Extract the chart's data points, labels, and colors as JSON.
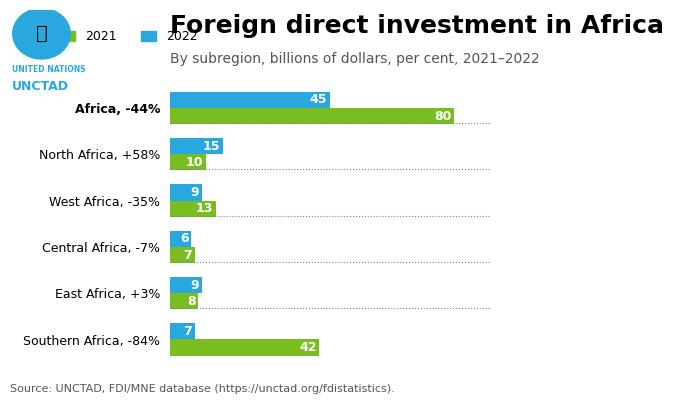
{
  "title": "Foreign direct investment in Africa",
  "subtitle": "By subregion, billions of dollars, per cent, 2021–2022",
  "source": "Source: UNCTAD, FDI/MNE database (https://unctad.org/fdistatistics).",
  "categories": [
    "Africa, -44%",
    "North Africa, +58%",
    "West Africa, -35%",
    "Central Africa, -7%",
    "East Africa, +3%",
    "Southern Africa, -84%"
  ],
  "values_2021": [
    80,
    10,
    13,
    7,
    8,
    42
  ],
  "values_2022": [
    45,
    15,
    9,
    6,
    9,
    7
  ],
  "labels_2021": [
    "80",
    "10",
    "13",
    "7",
    "8",
    "42"
  ],
  "labels_2022": [
    "45",
    "15",
    "9",
    "6",
    "9",
    "7"
  ],
  "color_2021": "#78BE21",
  "color_2022": "#29A8E0",
  "background_color": "#FFFFFF",
  "title_fontsize": 18,
  "subtitle_fontsize": 10,
  "label_fontsize": 9,
  "axis_label_fontsize": 9,
  "source_fontsize": 8,
  "legend_fontsize": 9,
  "africa_bold": true,
  "bar_height": 0.35,
  "xlim": [
    0,
    90
  ]
}
